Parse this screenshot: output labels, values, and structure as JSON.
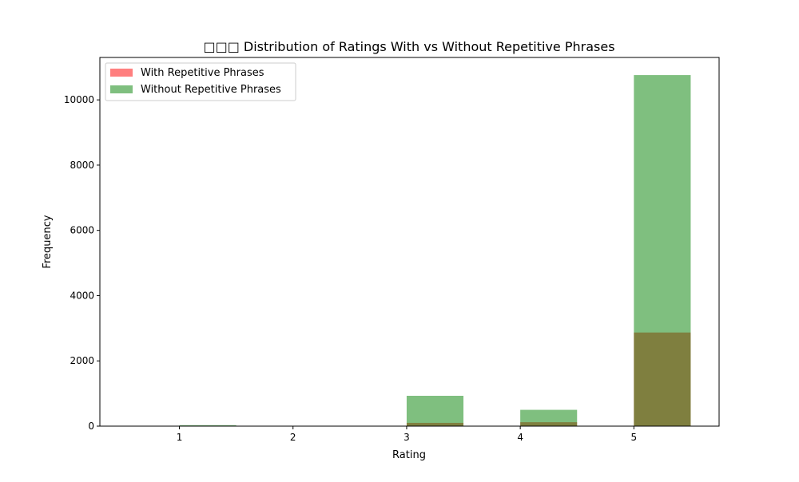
{
  "chart_data": {
    "type": "bar",
    "title": "□□□ Distribution of Ratings With vs Without Repetitive Phrases",
    "xlabel": "Rating",
    "ylabel": "Frequency",
    "xlim": [
      0.3,
      5.75
    ],
    "ylim": [
      0,
      11300
    ],
    "xticks": [
      1,
      2,
      3,
      4,
      5
    ],
    "yticks": [
      0,
      2000,
      4000,
      6000,
      8000,
      10000
    ],
    "bins": [
      {
        "start": 1.0,
        "end": 1.5
      },
      {
        "start": 3.0,
        "end": 3.5
      },
      {
        "start": 4.0,
        "end": 4.5
      },
      {
        "start": 5.0,
        "end": 5.5
      }
    ],
    "series": [
      {
        "name": "With Repetitive Phrases",
        "color": "#ff0000",
        "opacity": 0.5,
        "values": [
          2,
          100,
          120,
          2870
        ]
      },
      {
        "name": "Without Repetitive Phrases",
        "color": "#008000",
        "opacity": 0.5,
        "values": [
          30,
          930,
          500,
          10760
        ]
      }
    ],
    "legend_position": "top-left",
    "grid": false
  }
}
